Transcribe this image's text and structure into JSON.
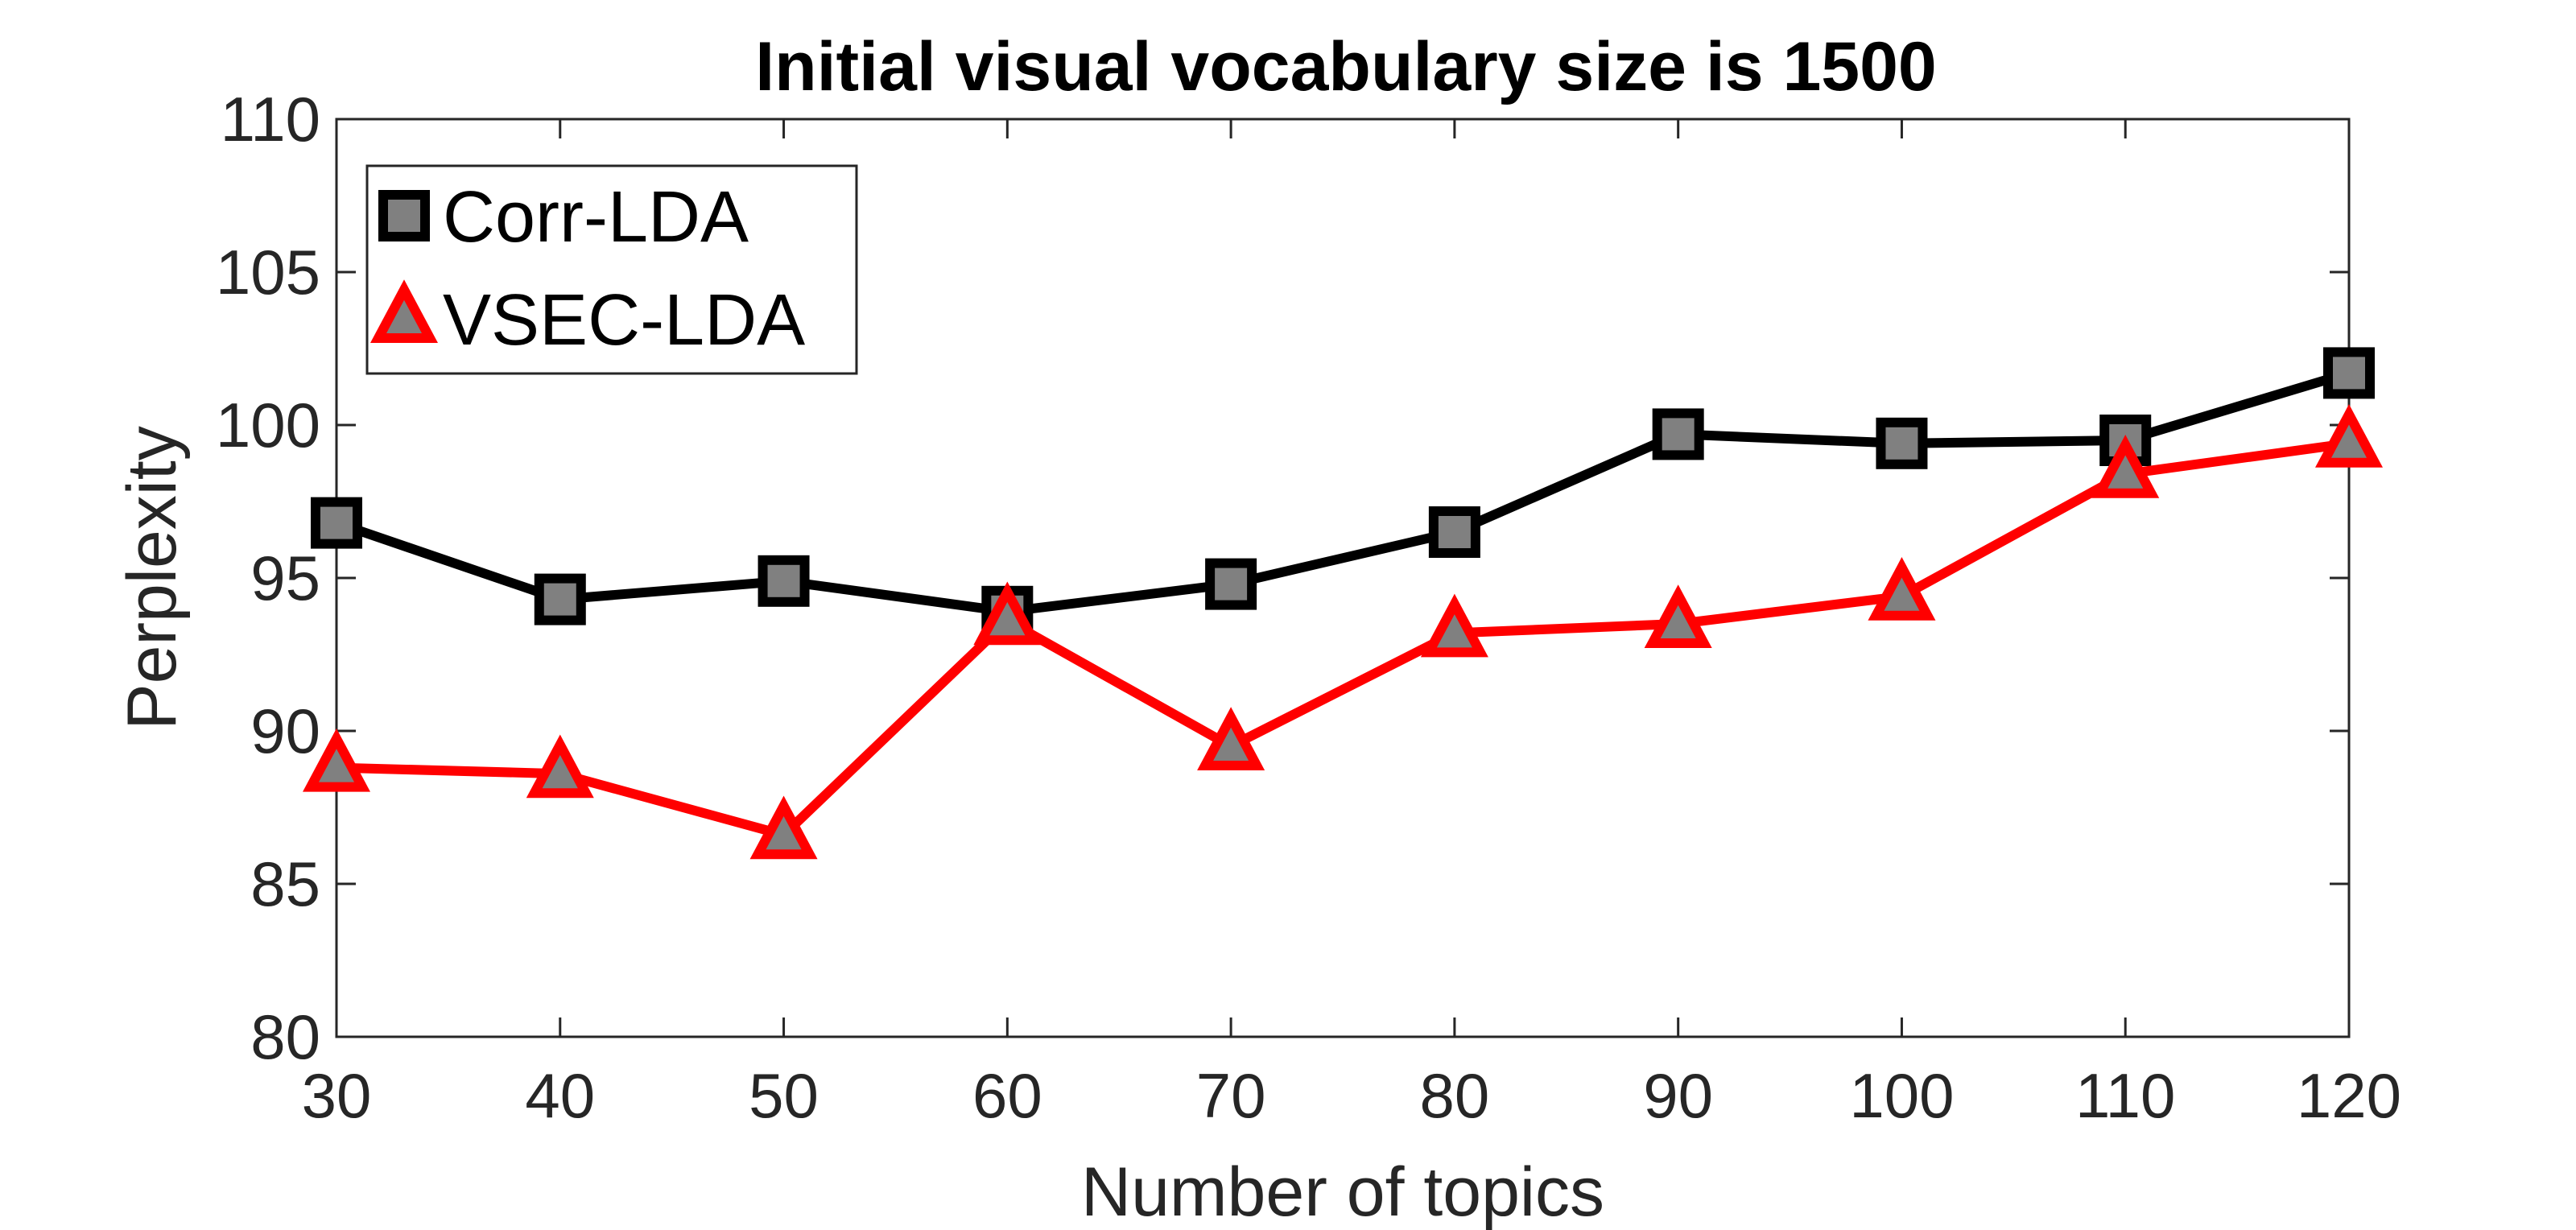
{
  "chart_data": {
    "type": "line",
    "title": "Initial visual vocabulary size is 1500",
    "xlabel": "Number of topics",
    "ylabel": "Perplexity",
    "x": [
      30,
      40,
      50,
      60,
      70,
      80,
      90,
      100,
      110,
      120
    ],
    "xticks": [
      "30",
      "40",
      "50",
      "60",
      "70",
      "80",
      "90",
      "100",
      "110",
      "120"
    ],
    "yticks": [
      "80",
      "85",
      "90",
      "95",
      "100",
      "105",
      "110"
    ],
    "xlim": [
      30,
      120
    ],
    "ylim": [
      80,
      110
    ],
    "grid": false,
    "legend_position": "top-left",
    "series": [
      {
        "name": "Corr-LDA",
        "marker": "square",
        "line_color": "#000000",
        "marker_fill": "#808080",
        "values": [
          96.8,
          94.3,
          94.9,
          93.9,
          94.8,
          96.5,
          99.7,
          99.4,
          99.5,
          101.7
        ]
      },
      {
        "name": "VSEC-LDA",
        "marker": "triangle",
        "line_color": "#ff0000",
        "marker_fill": "#808080",
        "values": [
          88.8,
          88.6,
          86.6,
          93.6,
          89.5,
          93.2,
          93.5,
          94.4,
          98.4,
          99.4
        ]
      }
    ]
  }
}
